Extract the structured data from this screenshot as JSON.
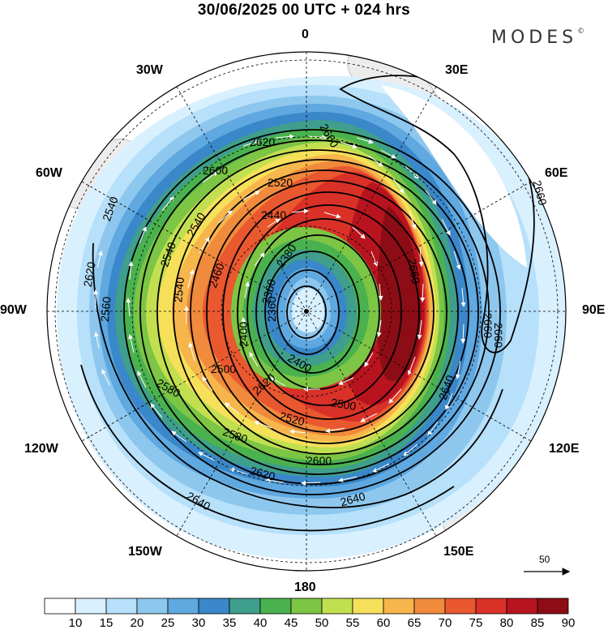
{
  "header": {
    "title": "30/06/2025  00 UTC  + 024 hrs",
    "brand": "MODES",
    "brand_mark": "©"
  },
  "map": {
    "projection": "south-polar-stereographic",
    "longitude_labels": {
      "lon_0": "0",
      "lon_30e": "30E",
      "lon_60e": "60E",
      "lon_90e": "90E",
      "lon_120e": "120E",
      "lon_150e": "150E",
      "lon_180": "180",
      "lon_150w": "150W",
      "lon_120w": "120W",
      "lon_90w": "90W",
      "lon_60w": "60W",
      "lon_30w": "30W"
    },
    "contour_labels": [
      "2660",
      "2660",
      "2660",
      "2660",
      "2620",
      "2600",
      "2520",
      "2440",
      "2540",
      "2540",
      "2540",
      "2620",
      "2380",
      "2460",
      "2360",
      "2400",
      "2560",
      "2500",
      "2540",
      "2580",
      "2400",
      "2520",
      "2500",
      "2580",
      "2600",
      "2620",
      "2640",
      "2640",
      "2640",
      "2620",
      "2360",
      "2660"
    ]
  },
  "colorbar": {
    "ticks": [
      "10",
      "15",
      "20",
      "25",
      "30",
      "35",
      "40",
      "45",
      "50",
      "55",
      "60",
      "65",
      "70",
      "75",
      "80",
      "85",
      "90"
    ],
    "colors": [
      "#ffffff",
      "#d9f0ff",
      "#b7e0fa",
      "#8ec7ee",
      "#5fa8e0",
      "#3a87c9",
      "#3f9e8c",
      "#4ab14f",
      "#7cc545",
      "#c2df50",
      "#f6e05a",
      "#f6b64c",
      "#f08a3c",
      "#e9582f",
      "#d93128",
      "#b8141f",
      "#8c0d15"
    ]
  },
  "vector_reference": {
    "label": "50"
  }
}
